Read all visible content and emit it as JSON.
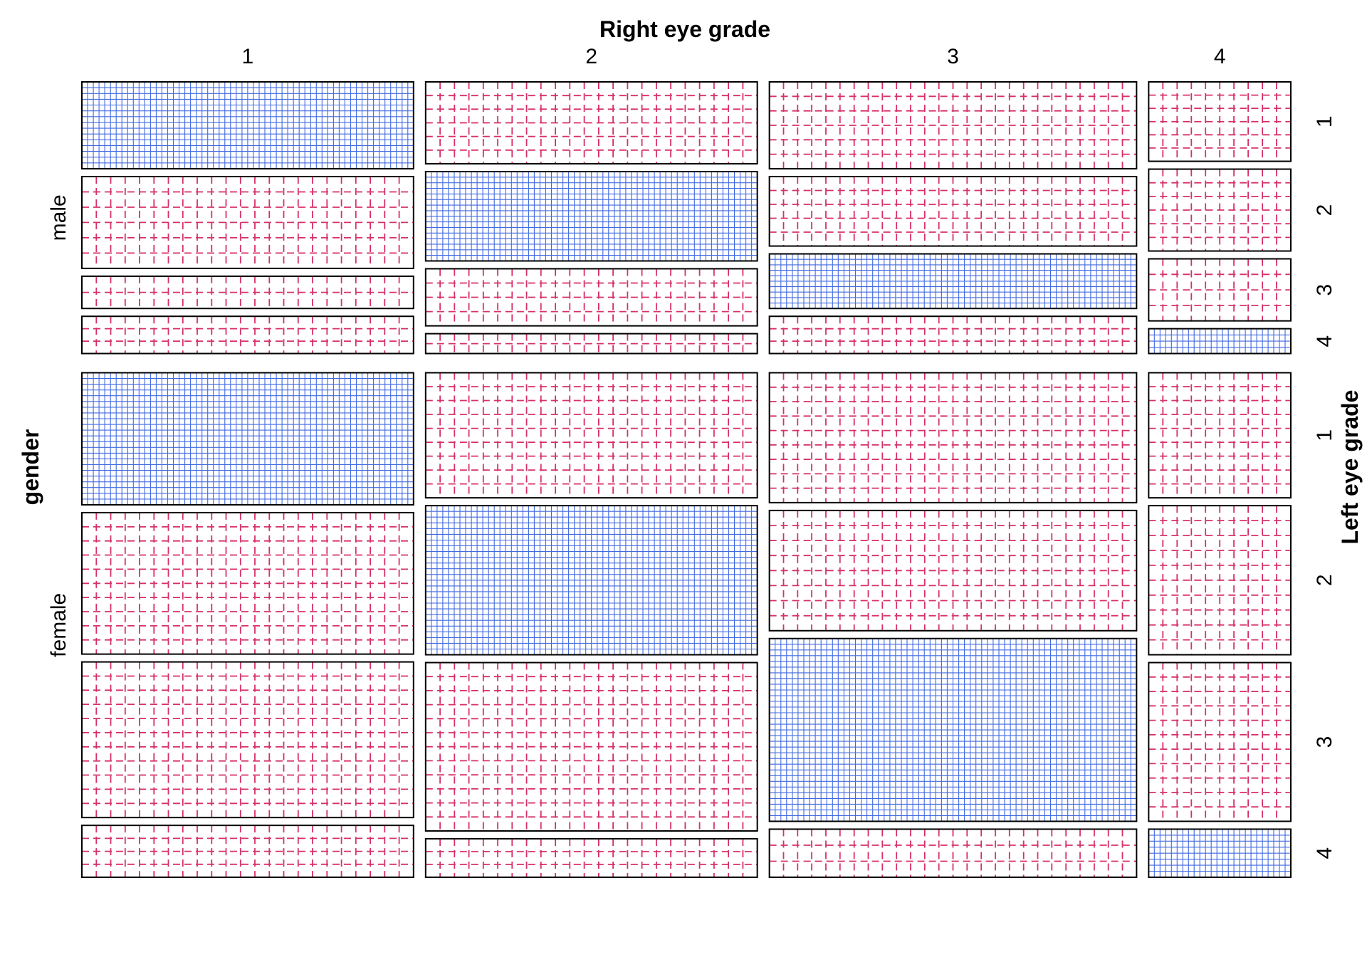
{
  "chart_data": {
    "type": "mosaic",
    "title": "",
    "col_axis": {
      "label": "Right eye grade",
      "categories": [
        "1",
        "2",
        "3",
        "4"
      ]
    },
    "outer_row_axis": {
      "label": "gender",
      "categories": [
        "male",
        "female"
      ]
    },
    "inner_row_axis": {
      "label": "Left eye grade",
      "categories": [
        "1",
        "2",
        "3",
        "4"
      ]
    },
    "column_share": [
      0.28,
      0.28,
      0.31,
      0.12
    ],
    "gender_share": [
      0.35,
      0.65
    ],
    "left_eye_share_within": {
      "male": [
        [
          0.35,
          0.37,
          0.13,
          0.15
        ],
        [
          0.33,
          0.36,
          0.23,
          0.08
        ],
        [
          0.35,
          0.28,
          0.22,
          0.15
        ],
        [
          0.32,
          0.33,
          0.25,
          0.1
        ]
      ],
      "female": [
        [
          0.28,
          0.3,
          0.33,
          0.11
        ],
        [
          0.26,
          0.31,
          0.35,
          0.08
        ],
        [
          0.27,
          0.25,
          0.38,
          0.1
        ],
        [
          0.26,
          0.31,
          0.33,
          0.1
        ]
      ]
    },
    "residual_sign": {
      "male": [
        [
          "pos",
          "neg",
          "neg",
          "neg"
        ],
        [
          "neg",
          "pos",
          "neg",
          "neg"
        ],
        [
          "neg",
          "neg",
          "pos",
          "neg"
        ],
        [
          "neg",
          "neg",
          "neg",
          "pos"
        ]
      ],
      "female": [
        [
          "pos",
          "neg",
          "neg",
          "neg"
        ],
        [
          "neg",
          "pos",
          "neg",
          "neg"
        ],
        [
          "neg",
          "neg",
          "pos",
          "neg"
        ],
        [
          "neg",
          "neg",
          "neg",
          "pos"
        ]
      ]
    },
    "colors": {
      "positive": "#4169E1",
      "negative": "#D6306A",
      "border": "#000000"
    },
    "legend": "none",
    "grid": false
  }
}
